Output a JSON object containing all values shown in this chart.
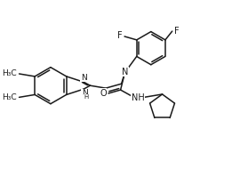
{
  "background_color": "#ffffff",
  "line_color": "#1a1a1a",
  "line_width": 1.1,
  "font_size": 6.5,
  "figsize": [
    2.7,
    2.08
  ],
  "dpi": 100,
  "xlim": [
    0,
    270
  ],
  "ylim": [
    0,
    208
  ]
}
